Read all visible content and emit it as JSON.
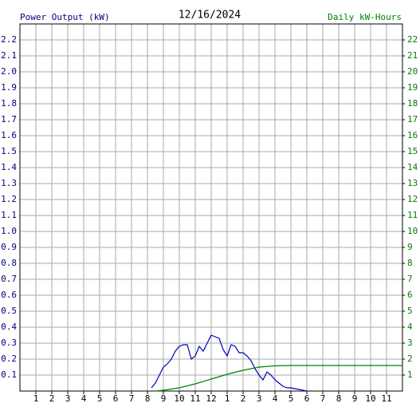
{
  "chart_data": {
    "type": "line",
    "title": "12/16/2024",
    "ylabel": "Power Output (kW)",
    "y2label": "Daily kW-Hours",
    "ylabel_color": "#000080",
    "y2label_color": "#008000",
    "xlim": [
      0,
      24
    ],
    "xticks": [
      1,
      2,
      3,
      4,
      5,
      6,
      7,
      8,
      9,
      10,
      11,
      12,
      {
        "value": 13,
        "label": "1"
      },
      {
        "value": 14,
        "label": "2"
      },
      {
        "value": 15,
        "label": "3"
      },
      {
        "value": 16,
        "label": "4"
      },
      {
        "value": 17,
        "label": "5"
      },
      {
        "value": 18,
        "label": "6"
      },
      {
        "value": 19,
        "label": "7"
      },
      {
        "value": 20,
        "label": "8"
      },
      {
        "value": 21,
        "label": "9"
      },
      {
        "value": 22,
        "label": "10"
      },
      {
        "value": 23,
        "label": "11"
      }
    ],
    "ylim": [
      0,
      2.3
    ],
    "yticks": [
      0.1,
      0.2,
      0.3,
      0.4,
      0.5,
      0.6,
      0.7,
      0.8,
      0.9,
      {
        "value": 1,
        "label": "1.0"
      },
      1.1,
      1.2,
      1.3,
      1.4,
      1.5,
      1.6,
      1.7,
      1.8,
      1.9,
      {
        "value": 2,
        "label": "2.0"
      },
      2.1,
      2.2
    ],
    "y2lim": [
      0,
      23
    ],
    "y2ticks": [
      1,
      2,
      3,
      4,
      5,
      6,
      7,
      8,
      9,
      10,
      11,
      12,
      13,
      14,
      15,
      16,
      17,
      18,
      19,
      20,
      21,
      22
    ],
    "grid": true,
    "series": [
      {
        "color": "#0000c0",
        "axis": "y",
        "x": [
          8.25,
          8.5,
          8.75,
          9,
          9.25,
          9.5,
          9.75,
          10,
          10.25,
          10.5,
          10.75,
          11,
          11.25,
          11.5,
          11.75,
          12,
          12.25,
          12.5,
          12.75,
          13,
          13.25,
          13.5,
          13.75,
          14,
          14.25,
          14.5,
          14.75,
          15,
          15.25,
          15.5,
          15.75,
          16,
          16.25,
          16.5,
          16.75,
          17,
          17.5,
          18
        ],
        "values": [
          0.02,
          0.05,
          0.1,
          0.15,
          0.17,
          0.2,
          0.25,
          0.28,
          0.29,
          0.29,
          0.2,
          0.22,
          0.28,
          0.25,
          0.3,
          0.35,
          0.34,
          0.33,
          0.26,
          0.22,
          0.29,
          0.28,
          0.24,
          0.24,
          0.22,
          0.19,
          0.14,
          0.1,
          0.07,
          0.12,
          0.1,
          0.07,
          0.05,
          0.03,
          0.02,
          0.02,
          0.01,
          0
        ]
      },
      {
        "color": "#008000",
        "axis": "y2",
        "x": [
          8.5,
          9,
          10,
          11,
          12,
          13,
          14,
          15,
          16,
          17,
          24
        ],
        "values": [
          0,
          0.05,
          0.2,
          0.45,
          0.75,
          1.05,
          1.3,
          1.5,
          1.58,
          1.6,
          1.6
        ]
      }
    ]
  }
}
